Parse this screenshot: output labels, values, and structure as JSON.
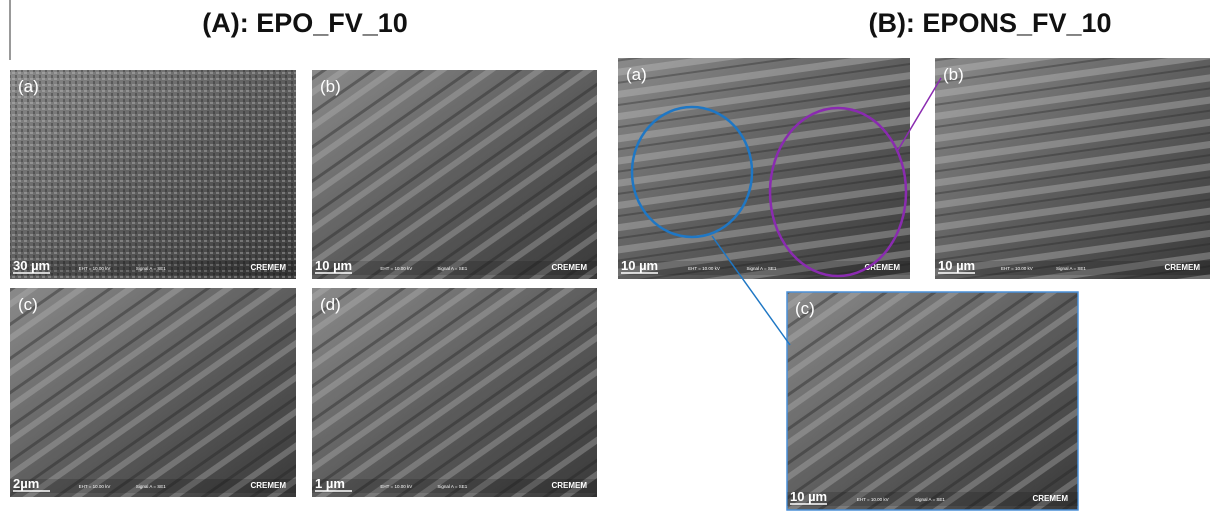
{
  "panel_a": {
    "title": "(A): EPO_FV_10",
    "images": [
      {
        "label": "(a)",
        "scale": "30 µm",
        "eht": "EHT = 10.00 kV",
        "signal": "Signal A = SE1",
        "brand": "CREMEM"
      },
      {
        "label": "(b)",
        "scale": "10 µm",
        "eht": "EHT = 10.00 kV",
        "signal": "Signal A = SE1",
        "brand": "CREMEM"
      },
      {
        "label": "(c)",
        "scale": "2µm",
        "eht": "EHT = 10.00 kV",
        "signal": "Signal A = SE1",
        "brand": "CREMEM"
      },
      {
        "label": "(d)",
        "scale": "1 µm",
        "eht": "EHT = 10.00 kV",
        "signal": "Signal A = SE1",
        "brand": "CREMEM"
      }
    ]
  },
  "panel_b": {
    "title": "(B): EPONS_FV_10",
    "images": [
      {
        "label": "(a)",
        "scale": "10 µm",
        "eht": "EHT = 10.00 kV",
        "signal": "Signal A = SE1",
        "brand": "CREMEM"
      },
      {
        "label": "(b)",
        "scale": "10 µm",
        "eht": "EHT = 10.00 kV",
        "signal": "Signal A = SE1",
        "brand": "CREMEM"
      },
      {
        "label": "(c)",
        "scale": "10 µm",
        "eht": "EHT = 10.00 kV",
        "signal": "Signal A = SE1",
        "brand": "CREMEM"
      }
    ]
  }
}
